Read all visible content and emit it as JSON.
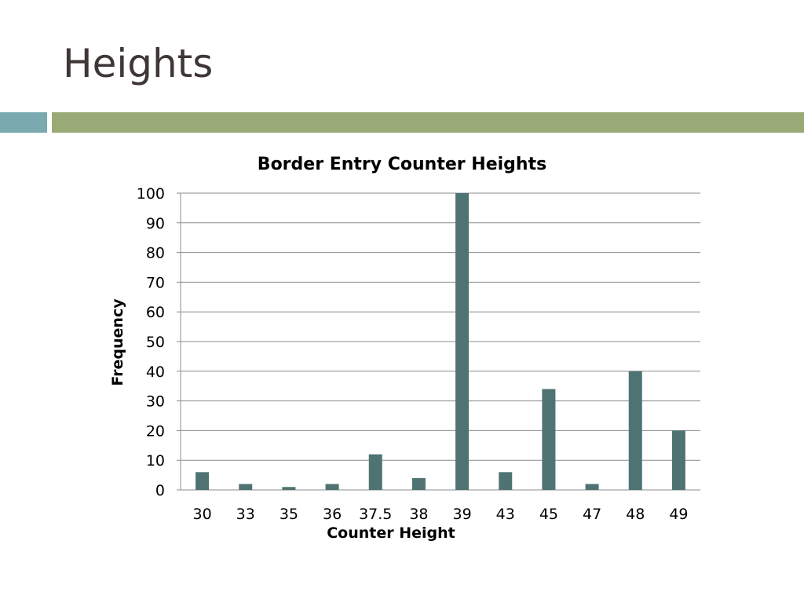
{
  "slide": {
    "title": "Heights",
    "accent_colors": {
      "band_left": "#7aa9b0",
      "band_right": "#9aaa77"
    }
  },
  "chart_data": {
    "type": "bar",
    "title": "Border Entry Counter Heights",
    "xlabel": "Counter Height",
    "ylabel": "Frequency",
    "categories": [
      "30",
      "33",
      "35",
      "36",
      "37.5",
      "38",
      "39",
      "43",
      "45",
      "47",
      "48",
      "49"
    ],
    "values": [
      6,
      2,
      1,
      2,
      12,
      4,
      100,
      6,
      34,
      2,
      40,
      20
    ],
    "ylim": [
      0,
      100
    ],
    "yticks": [
      0,
      10,
      20,
      30,
      40,
      50,
      60,
      70,
      80,
      90,
      100
    ],
    "grid": true,
    "legend": "none",
    "bar_color": "#4f7373"
  }
}
